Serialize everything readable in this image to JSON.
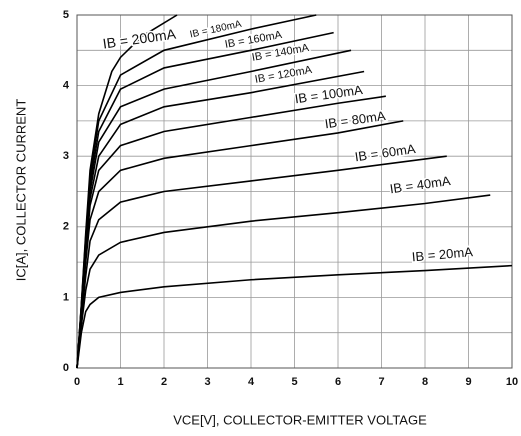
{
  "chart_data": {
    "type": "line",
    "xlabel": "VCE[V], COLLECTOR-EMITTER VOLTAGE",
    "ylabel": "IC[A], COLLECTOR CURRENT",
    "xlim": [
      0,
      10
    ],
    "ylim": [
      0,
      5
    ],
    "xticks": [
      0,
      1,
      2,
      3,
      4,
      5,
      6,
      7,
      8,
      9,
      10
    ],
    "yticks": [
      0,
      1,
      2,
      3,
      4,
      5
    ],
    "yminor": [
      0.5,
      1.5,
      2.5,
      3.5,
      4.5
    ],
    "grid": true,
    "series": [
      {
        "name": "IB = 20mA",
        "color": "#000000",
        "x": [
          0,
          0.1,
          0.2,
          0.3,
          0.5,
          1,
          2,
          4,
          6,
          8,
          10
        ],
        "values": [
          0,
          0.5,
          0.8,
          0.9,
          1.0,
          1.07,
          1.15,
          1.25,
          1.32,
          1.38,
          1.45
        ]
      },
      {
        "name": "IB = 40mA",
        "color": "#000000",
        "x": [
          0,
          0.1,
          0.2,
          0.3,
          0.5,
          1,
          2,
          4,
          6,
          8,
          9.5
        ],
        "values": [
          0,
          0.6,
          1.1,
          1.4,
          1.6,
          1.78,
          1.92,
          2.08,
          2.2,
          2.33,
          2.45
        ]
      },
      {
        "name": "IB = 60mA",
        "color": "#000000",
        "x": [
          0,
          0.1,
          0.2,
          0.3,
          0.5,
          1,
          2,
          4,
          6,
          8.5
        ],
        "values": [
          0,
          0.7,
          1.3,
          1.8,
          2.1,
          2.35,
          2.5,
          2.65,
          2.8,
          3.0
        ]
      },
      {
        "name": "IB = 80mA",
        "color": "#000000",
        "x": [
          0,
          0.1,
          0.2,
          0.3,
          0.5,
          1,
          2,
          4,
          6,
          7.5
        ],
        "values": [
          0,
          0.75,
          1.5,
          2.1,
          2.5,
          2.8,
          2.97,
          3.15,
          3.33,
          3.5
        ]
      },
      {
        "name": "IB = 100mA",
        "color": "#000000",
        "x": [
          0,
          0.1,
          0.2,
          0.3,
          0.5,
          1,
          2,
          4,
          6,
          7.1
        ],
        "values": [
          0,
          0.8,
          1.6,
          2.3,
          2.8,
          3.15,
          3.35,
          3.55,
          3.75,
          3.85
        ]
      },
      {
        "name": "IB = 120mA",
        "color": "#000000",
        "x": [
          0,
          0.1,
          0.2,
          0.3,
          0.5,
          1,
          2,
          4,
          6.6
        ],
        "values": [
          0,
          0.82,
          1.7,
          2.4,
          3.0,
          3.45,
          3.7,
          3.9,
          4.2
        ]
      },
      {
        "name": "IB = 140mA",
        "color": "#000000",
        "x": [
          0,
          0.1,
          0.2,
          0.3,
          0.5,
          1,
          2,
          4,
          6.3
        ],
        "values": [
          0,
          0.85,
          1.75,
          2.5,
          3.2,
          3.7,
          3.95,
          4.2,
          4.5
        ]
      },
      {
        "name": "IB = 160mA",
        "color": "#000000",
        "x": [
          0,
          0.1,
          0.2,
          0.3,
          0.5,
          1,
          2,
          4,
          5.9
        ],
        "values": [
          0,
          0.87,
          1.8,
          2.6,
          3.35,
          3.95,
          4.25,
          4.5,
          4.75
        ]
      },
      {
        "name": "IB = 180mA",
        "color": "#000000",
        "x": [
          0,
          0.1,
          0.2,
          0.3,
          0.5,
          1,
          2,
          4,
          5.5
        ],
        "values": [
          0,
          0.88,
          1.85,
          2.7,
          3.5,
          4.15,
          4.5,
          4.8,
          5.0
        ]
      },
      {
        "name": "IB = 200mA",
        "color": "#000000",
        "x": [
          0,
          0.1,
          0.2,
          0.3,
          0.5,
          0.8,
          1,
          1.5,
          2.3
        ],
        "values": [
          0,
          0.9,
          1.9,
          2.8,
          3.6,
          4.2,
          4.4,
          4.7,
          5.0
        ]
      }
    ]
  }
}
